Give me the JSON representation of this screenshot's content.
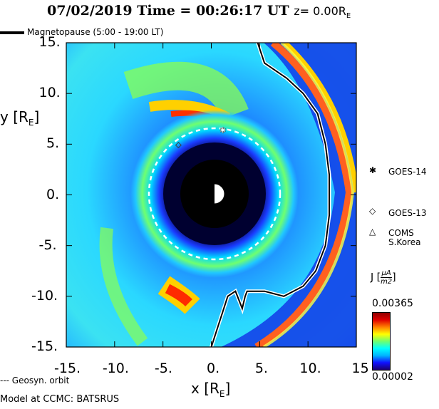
{
  "header": {
    "title_main": "07/02/2019 Time = 00:26:17 UT",
    "title_z": "z= 0.00R",
    "title_z_sub": "E"
  },
  "legend": {
    "magnetopause": "Magnetopause (5:00 - 19:00 LT)",
    "geosyn": "--- Geosyn. orbit"
  },
  "footer": {
    "model": "Model at CCMC: BATSRUS"
  },
  "satellites": [
    {
      "name": "GOES-14",
      "symbol": "✱"
    },
    {
      "name": "GOES-13",
      "symbol": "◇"
    },
    {
      "name": "COMS",
      "name2": "S.Korea",
      "symbol": "△"
    }
  ],
  "colorbar": {
    "label": "J",
    "unit_num": "μA",
    "unit_den": "m2",
    "max": "0.00365",
    "min": "0.00002"
  },
  "chart_data": {
    "type": "heatmap",
    "title": "07/02/2019 Time = 00:26:17 UT z= 0.00RE",
    "xlabel": "x [RE]",
    "ylabel": "y [RE]",
    "xlim": [
      -15,
      15
    ],
    "ylim": [
      -15,
      15
    ],
    "xticks": [
      "-15.",
      "-10.",
      "-5.",
      "0.",
      "5.",
      "10.",
      "15"
    ],
    "yticks": [
      "15.",
      "10.",
      "5.",
      "0.",
      "-5.",
      "-10.",
      "-15."
    ],
    "xtick_values": [
      -15,
      -10,
      -5,
      0,
      5,
      10,
      15
    ],
    "ytick_values": [
      15,
      10,
      5,
      0,
      -5,
      -10,
      -15
    ],
    "xlabel_text": "x [R",
    "ylabel_text": "y [R",
    "label_sub": "E",
    "label_close": "]",
    "quantity": "J",
    "color_range": [
      2e-05,
      0.00365
    ],
    "earth_radius": 1,
    "inner_boundary_radius": 3.5,
    "geosync_radius": 6.6,
    "magnetopause_line": [
      [
        4.8,
        15
      ],
      [
        5.5,
        13
      ],
      [
        7.8,
        11.5
      ],
      [
        9.5,
        10
      ],
      [
        11,
        8
      ],
      [
        11.8,
        5
      ],
      [
        12.2,
        2
      ],
      [
        12.2,
        -2
      ],
      [
        11.8,
        -5
      ],
      [
        10.8,
        -7.5
      ],
      [
        9.5,
        -9
      ],
      [
        7.5,
        -10
      ],
      [
        5.5,
        -9.5
      ],
      [
        4,
        -9.5
      ],
      [
        3.7,
        -9.5
      ],
      [
        3.5,
        -10
      ],
      [
        3.2,
        -11.2
      ],
      [
        2.5,
        -9.5
      ],
      [
        1.7,
        -10
      ],
      [
        0,
        -15
      ]
    ],
    "satellite_positions": [
      {
        "name": "GOES-14",
        "x": 1.2,
        "y": 6.4
      },
      {
        "name": "GOES-13",
        "x": -3.4,
        "y": 5.0
      }
    ],
    "grid": false
  }
}
